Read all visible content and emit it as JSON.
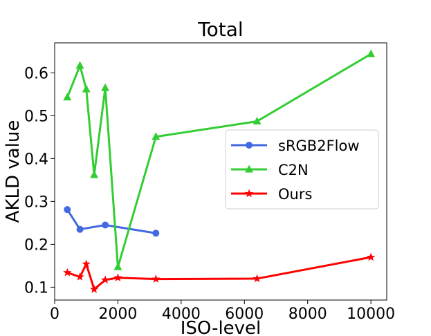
{
  "chart_data": {
    "type": "line",
    "title": "Total",
    "xlabel": "ISO-level",
    "ylabel": "AKLD value",
    "xlim": [
      0,
      10500
    ],
    "ylim": [
      0.07,
      0.67
    ],
    "xticks": [
      0,
      2000,
      4000,
      6000,
      8000,
      10000
    ],
    "yticks": [
      0.1,
      0.2,
      0.3,
      0.4,
      0.5,
      0.6
    ],
    "grid": false,
    "legend": "center-right",
    "series": [
      {
        "name": "sRGB2Flow",
        "color": "#4169e1",
        "marker": "circle",
        "x": [
          400,
          800,
          1600,
          3200
        ],
        "y": [
          0.281,
          0.235,
          0.245,
          0.226
        ]
      },
      {
        "name": "C2N",
        "color": "#32cd32",
        "marker": "triangle",
        "x": [
          400,
          800,
          1000,
          1250,
          1600,
          2000,
          3200,
          6400,
          10000
        ],
        "y": [
          0.543,
          0.617,
          0.562,
          0.362,
          0.565,
          0.147,
          0.451,
          0.487,
          0.644
        ]
      },
      {
        "name": "Ours",
        "color": "#ff0000",
        "marker": "star",
        "x": [
          400,
          800,
          1000,
          1250,
          1600,
          2000,
          3200,
          6400,
          10000
        ],
        "y": [
          0.134,
          0.124,
          0.154,
          0.095,
          0.117,
          0.122,
          0.119,
          0.12,
          0.17
        ]
      }
    ]
  }
}
